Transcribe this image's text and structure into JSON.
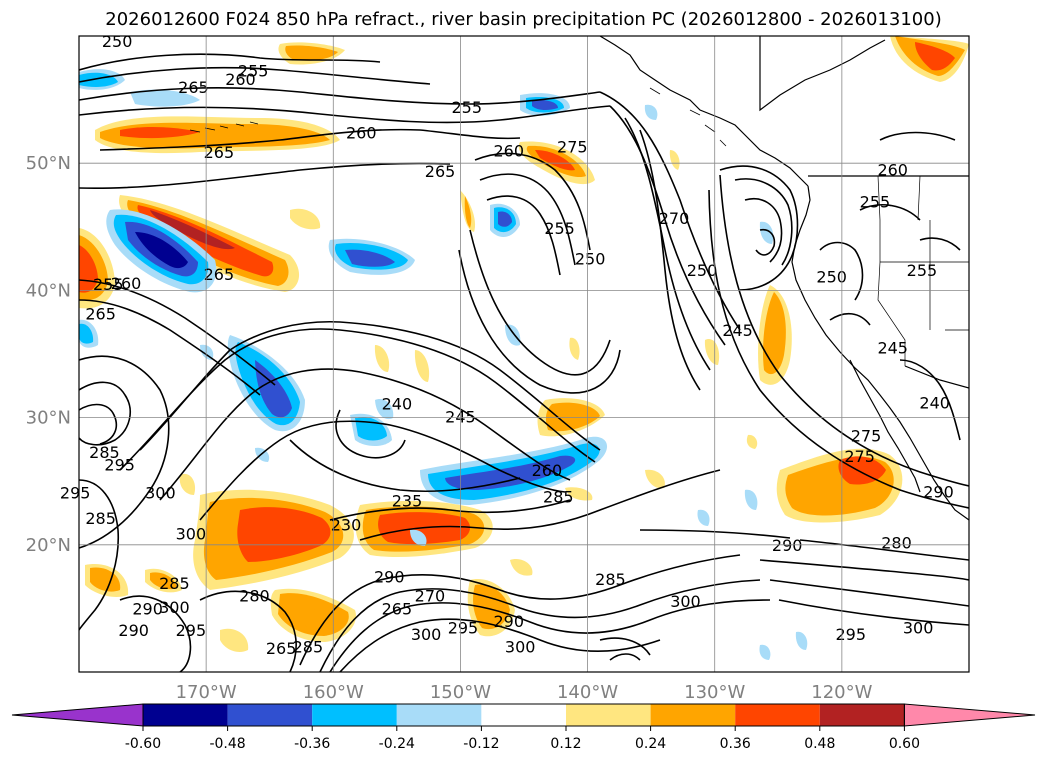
{
  "title": "2026012600 F024 850 hPa refract., river basin precipitation PC (2026012800 - 2026013100)",
  "map": {
    "lon_range": [
      -180,
      -110
    ],
    "lat_range": [
      10,
      60
    ],
    "lat_labels": [
      {
        "lat": 50,
        "text": "50°N"
      },
      {
        "lat": 40,
        "text": "40°N"
      },
      {
        "lat": 30,
        "text": "30°N"
      },
      {
        "lat": 20,
        "text": "20°N"
      }
    ],
    "lon_labels": [
      {
        "lon": -170,
        "text": "170°W"
      },
      {
        "lon": -160,
        "text": "160°W"
      },
      {
        "lon": -150,
        "text": "150°W"
      },
      {
        "lon": -140,
        "text": "140°W"
      },
      {
        "lon": -130,
        "text": "130°W"
      },
      {
        "lon": -120,
        "text": "120°W"
      }
    ],
    "grid": true,
    "contour_labels": [
      {
        "lon": -177.0,
        "lat": 59.6,
        "text": "250"
      },
      {
        "lon": -171.0,
        "lat": 56.0,
        "text": "265"
      },
      {
        "lon": -166.3,
        "lat": 57.3,
        "text": "255"
      },
      {
        "lon": -167.3,
        "lat": 56.6,
        "text": "260"
      },
      {
        "lon": -149.5,
        "lat": 54.4,
        "text": "255"
      },
      {
        "lon": -157.8,
        "lat": 52.4,
        "text": "260"
      },
      {
        "lon": -169.0,
        "lat": 50.9,
        "text": "265"
      },
      {
        "lon": -151.6,
        "lat": 49.4,
        "text": "265"
      },
      {
        "lon": -146.2,
        "lat": 51.0,
        "text": "260"
      },
      {
        "lon": -141.2,
        "lat": 51.3,
        "text": "275"
      },
      {
        "lon": -142.2,
        "lat": 44.9,
        "text": "255"
      },
      {
        "lon": -139.8,
        "lat": 42.5,
        "text": "250"
      },
      {
        "lon": -133.2,
        "lat": 45.7,
        "text": "270"
      },
      {
        "lon": -131.0,
        "lat": 41.6,
        "text": "250"
      },
      {
        "lon": -128.2,
        "lat": 36.9,
        "text": "245"
      },
      {
        "lon": -116.0,
        "lat": 49.5,
        "text": "260"
      },
      {
        "lon": -117.4,
        "lat": 47.0,
        "text": "255"
      },
      {
        "lon": -120.8,
        "lat": 41.1,
        "text": "250"
      },
      {
        "lon": -113.7,
        "lat": 41.6,
        "text": "255"
      },
      {
        "lon": -116.0,
        "lat": 35.5,
        "text": "245"
      },
      {
        "lon": -112.7,
        "lat": 31.2,
        "text": "240"
      },
      {
        "lon": -169.0,
        "lat": 41.3,
        "text": "265"
      },
      {
        "lon": -178.3,
        "lat": 38.2,
        "text": "265"
      },
      {
        "lon": -177.7,
        "lat": 40.5,
        "text": "255"
      },
      {
        "lon": -176.3,
        "lat": 40.6,
        "text": "260"
      },
      {
        "lon": -155.0,
        "lat": 31.1,
        "text": "240"
      },
      {
        "lon": -150.0,
        "lat": 30.1,
        "text": "245"
      },
      {
        "lon": -154.2,
        "lat": 23.5,
        "text": "235"
      },
      {
        "lon": -159.0,
        "lat": 21.6,
        "text": "230"
      },
      {
        "lon": -143.2,
        "lat": 25.9,
        "text": "260"
      },
      {
        "lon": -155.6,
        "lat": 17.5,
        "text": "290"
      },
      {
        "lon": -178.0,
        "lat": 27.3,
        "text": "285"
      },
      {
        "lon": -176.8,
        "lat": 26.3,
        "text": "295"
      },
      {
        "lon": -180.3,
        "lat": 24.1,
        "text": "295"
      },
      {
        "lon": -173.6,
        "lat": 24.1,
        "text": "300"
      },
      {
        "lon": -178.3,
        "lat": 22.1,
        "text": "285"
      },
      {
        "lon": -171.2,
        "lat": 20.9,
        "text": "300"
      },
      {
        "lon": -172.5,
        "lat": 17.0,
        "text": "285"
      },
      {
        "lon": -174.6,
        "lat": 15.0,
        "text": "290"
      },
      {
        "lon": -172.5,
        "lat": 15.1,
        "text": "300"
      },
      {
        "lon": -175.7,
        "lat": 13.3,
        "text": "290"
      },
      {
        "lon": -171.2,
        "lat": 13.3,
        "text": "295"
      },
      {
        "lon": -166.2,
        "lat": 16.0,
        "text": "280"
      },
      {
        "lon": -162.0,
        "lat": 12.0,
        "text": "285"
      },
      {
        "lon": -164.1,
        "lat": 11.9,
        "text": "265"
      },
      {
        "lon": -155.0,
        "lat": 15.0,
        "text": "265"
      },
      {
        "lon": -152.4,
        "lat": 16.0,
        "text": "270"
      },
      {
        "lon": -152.7,
        "lat": 13.0,
        "text": "300"
      },
      {
        "lon": -149.8,
        "lat": 13.5,
        "text": "295"
      },
      {
        "lon": -146.2,
        "lat": 14.0,
        "text": "290"
      },
      {
        "lon": -145.3,
        "lat": 12.0,
        "text": "300"
      },
      {
        "lon": -142.3,
        "lat": 23.8,
        "text": "285"
      },
      {
        "lon": -138.2,
        "lat": 17.3,
        "text": "285"
      },
      {
        "lon": -132.3,
        "lat": 15.6,
        "text": "300"
      },
      {
        "lon": -124.3,
        "lat": 20.0,
        "text": "290"
      },
      {
        "lon": -115.7,
        "lat": 20.2,
        "text": "280"
      },
      {
        "lon": -119.3,
        "lat": 13.0,
        "text": "295"
      },
      {
        "lon": -114.0,
        "lat": 13.5,
        "text": "300"
      },
      {
        "lon": -118.1,
        "lat": 28.6,
        "text": "275"
      },
      {
        "lon": -118.6,
        "lat": 27.0,
        "text": "275"
      },
      {
        "lon": -112.4,
        "lat": 24.2,
        "text": "290"
      }
    ]
  },
  "colorbar": {
    "ticks": [
      "-0.60",
      "-0.48",
      "-0.36",
      "-0.24",
      "-0.12",
      "0.12",
      "0.24",
      "0.36",
      "0.48",
      "0.60"
    ],
    "colors": {
      "under": "#9933cc",
      "neg5": "#000090",
      "neg4": "#3050d0",
      "neg3": "#00bfff",
      "neg2": "#a8dcf8",
      "neutral": "#ffffff",
      "pos1": "#ffe680",
      "pos2": "#ffa500",
      "pos3": "#ff4500",
      "pos4": "#b22222",
      "over": "#ff88aa"
    }
  }
}
